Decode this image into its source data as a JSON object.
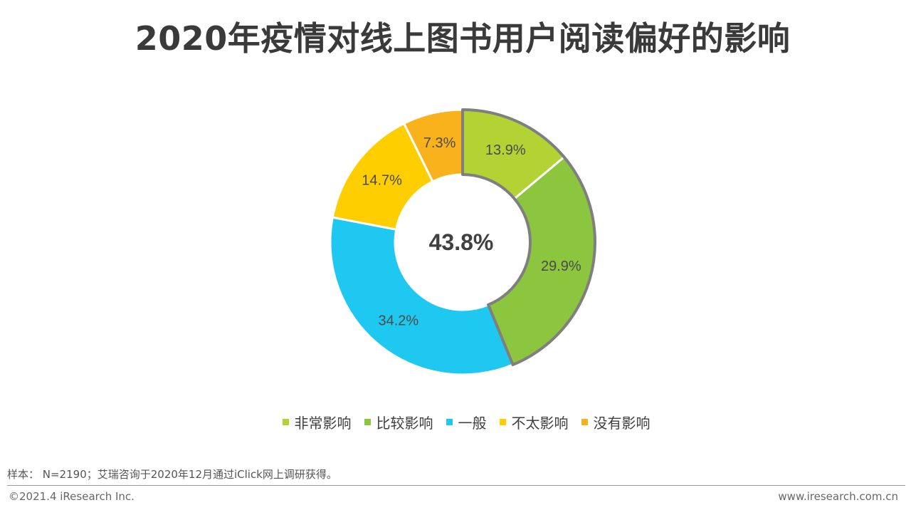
{
  "title": "2020年疫情对线上图书用户阅读偏好的影响",
  "chart_data": {
    "type": "pie",
    "title": "2020年疫情对线上图书用户阅读偏好的影响",
    "center_label": "43.8%",
    "categories": [
      "非常影响",
      "比较影响",
      "一般",
      "不太影响",
      "没有影响"
    ],
    "values": [
      13.9,
      29.9,
      34.2,
      14.7,
      7.3
    ],
    "value_labels": [
      "13.9%",
      "29.9%",
      "34.2%",
      "14.7%",
      "7.3%"
    ],
    "colors": [
      "#b3d335",
      "#8cc63f",
      "#1ec8f0",
      "#ffce00",
      "#f9b21b"
    ],
    "highlighted": [
      "非常影响",
      "比较影响"
    ],
    "legend_position": "bottom"
  },
  "footer": {
    "note": "样本： N=2190；艾瑞咨询于2020年12月通过iClick网上调研获得。",
    "copyright": "©2021.4 iResearch Inc.",
    "website": "www.iresearch.com.cn"
  }
}
